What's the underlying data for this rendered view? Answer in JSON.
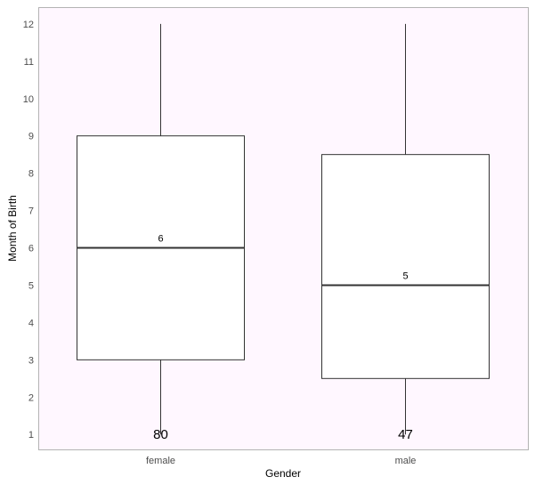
{
  "chart_data": {
    "type": "boxplot",
    "xlabel": "Gender",
    "ylabel": "Month of Birth",
    "categories": [
      "female",
      "male"
    ],
    "ylim": [
      0.6,
      12.45
    ],
    "yticks": [
      1,
      2,
      3,
      4,
      5,
      6,
      7,
      8,
      9,
      10,
      11,
      12
    ],
    "grid": false,
    "boxes": [
      {
        "category": "female",
        "whisker_low": 1,
        "q1": 3,
        "median": 6,
        "q3": 9,
        "whisker_high": 12,
        "median_label": "6",
        "count_label": "80"
      },
      {
        "category": "male",
        "whisker_low": 1,
        "q1": 2.5,
        "median": 5,
        "q3": 8.5,
        "whisker_high": 12,
        "median_label": "5",
        "count_label": "47"
      }
    ],
    "colors": {
      "panel_background": "#fff7ff",
      "panel_border": "#b3b3b3",
      "box_fill": "#ffffff",
      "box_line": "#333333",
      "median_line": "#333333"
    }
  }
}
